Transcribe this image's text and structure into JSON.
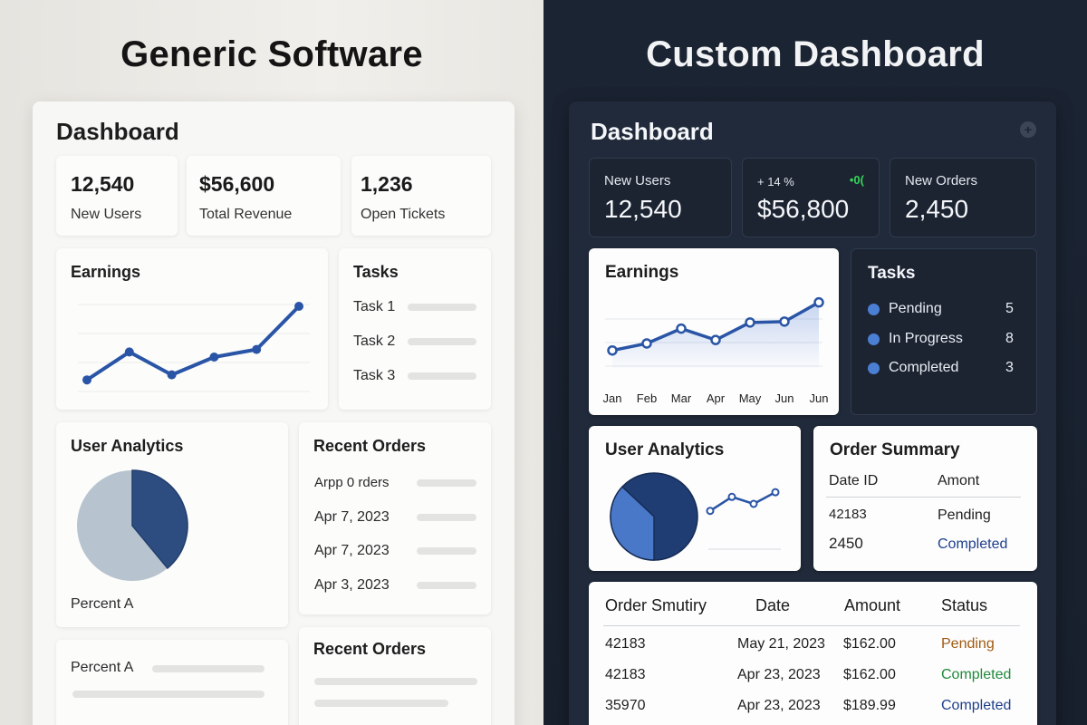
{
  "colors": {
    "accent_blue": "#2a55a6",
    "pie_light": "#b7c3cf",
    "pie_dark": "#2d4d80",
    "pending": "#a05a10",
    "completed_green": "#1f8a3b",
    "completed_blue": "#1e3f8c"
  },
  "left": {
    "heading": "Generic Software",
    "title": "Dashboard",
    "stats": [
      {
        "value": "12,540",
        "label": "New Users"
      },
      {
        "value": "$56,600",
        "label": "Total Revenue"
      },
      {
        "value": "1,236",
        "label": "Open Tickets"
      }
    ],
    "earnings_title": "Earnings",
    "earnings_values": [
      12,
      34,
      16,
      30,
      36,
      70
    ],
    "tasks_title": "Tasks",
    "tasks": [
      "Task 1",
      "Task 2",
      "Task 3"
    ],
    "analytics_title": "User Analytics",
    "analytics_caption": "Percent A",
    "pie_dark_fraction": 0.39,
    "orders_title": "Recent Orders",
    "orders": [
      "Arpp  0 rders",
      "Apr 7, 2023",
      "Apr 7, 2023",
      "Apr 3, 2023"
    ],
    "bottom_label": "Percent A",
    "orders2_title": "Recent Orders"
  },
  "right": {
    "heading": "Custom Dashboard",
    "title": "Dashboard",
    "stats": [
      {
        "label": "New Users",
        "value": "12,540"
      },
      {
        "label": "+ 14 %",
        "badge": "•0(",
        "value": "$56,800"
      },
      {
        "label": "New Orders",
        "value": "2,450"
      }
    ],
    "earnings_title": "Earnings",
    "earnings_months": [
      "Jan",
      "Feb",
      "Mar",
      "Apr",
      "May",
      "Jun",
      "Jun"
    ],
    "earnings_values": [
      20,
      28,
      45,
      32,
      52,
      53,
      75
    ],
    "tasks_title": "Tasks",
    "tasks": [
      {
        "label": "Pending",
        "count": "5"
      },
      {
        "label": "In Progress",
        "count": "8"
      },
      {
        "label": "Completed",
        "count": "3"
      }
    ],
    "analytics_title": "User Analytics",
    "pie_light_fraction": 0.37,
    "mini_values": [
      4,
      10,
      7,
      12
    ],
    "order_summary_title": "Order Summary",
    "order_summary_headers": [
      "Date  ID",
      "Amont"
    ],
    "order_summary_rows": [
      {
        "id": "42183",
        "status": "Pending"
      },
      {
        "id": "2450",
        "status": "Completed"
      }
    ],
    "table_headers": [
      "Order Smutiry",
      "Date",
      "Amount",
      "Status"
    ],
    "table_rows": [
      {
        "id": "42183",
        "date": "May 21, 2023",
        "amount": "$162.00",
        "status": "Pending"
      },
      {
        "id": "42183",
        "date": "Apr 23, 2023",
        "amount": "$162.00",
        "status": "Completed"
      },
      {
        "id": "35970",
        "date": "Apr 23, 2023",
        "amount": "$189.99",
        "status": "Completed"
      }
    ]
  }
}
